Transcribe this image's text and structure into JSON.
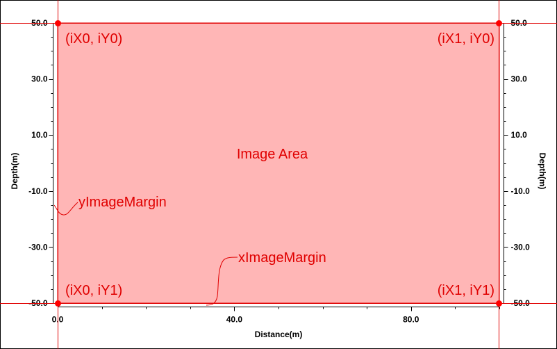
{
  "chart_data": {
    "type": "diagram",
    "xlabel": "Distance(m)",
    "ylabel_left": "Depth(m)",
    "ylabel_right": "Depth(m)",
    "x_ticks": [
      {
        "value": 0,
        "label": "0.0"
      },
      {
        "value": 40,
        "label": "40.0"
      },
      {
        "value": 80,
        "label": "80.0"
      }
    ],
    "y_ticks": [
      {
        "value": 50,
        "label": "50.0"
      },
      {
        "value": 30,
        "label": "30.0"
      },
      {
        "value": 10,
        "label": "10.0"
      },
      {
        "value": -10,
        "label": "-10.0"
      },
      {
        "value": -30,
        "label": "-30.0"
      },
      {
        "value": -50,
        "label": "-50.0"
      }
    ],
    "xlim": [
      0,
      100
    ],
    "ylim": [
      -50,
      50
    ],
    "image_area_label": "Image Area",
    "corner_labels": {
      "top_left": "(iX0, iY0)",
      "top_right": "(iX1, iY0)",
      "bottom_left": "(iX0, iY1)",
      "bottom_right": "(iX1, iY1)"
    },
    "margin_labels": {
      "y": "yImageMargin",
      "x": "xImageMargin"
    },
    "colors": {
      "image_area_fill": "#ffb6b6",
      "image_area_border": "#e00000",
      "guide_line": "#e00000",
      "corner_dot": "#ff0000",
      "annotation_text": "#e00000",
      "axis": "#000000"
    }
  }
}
